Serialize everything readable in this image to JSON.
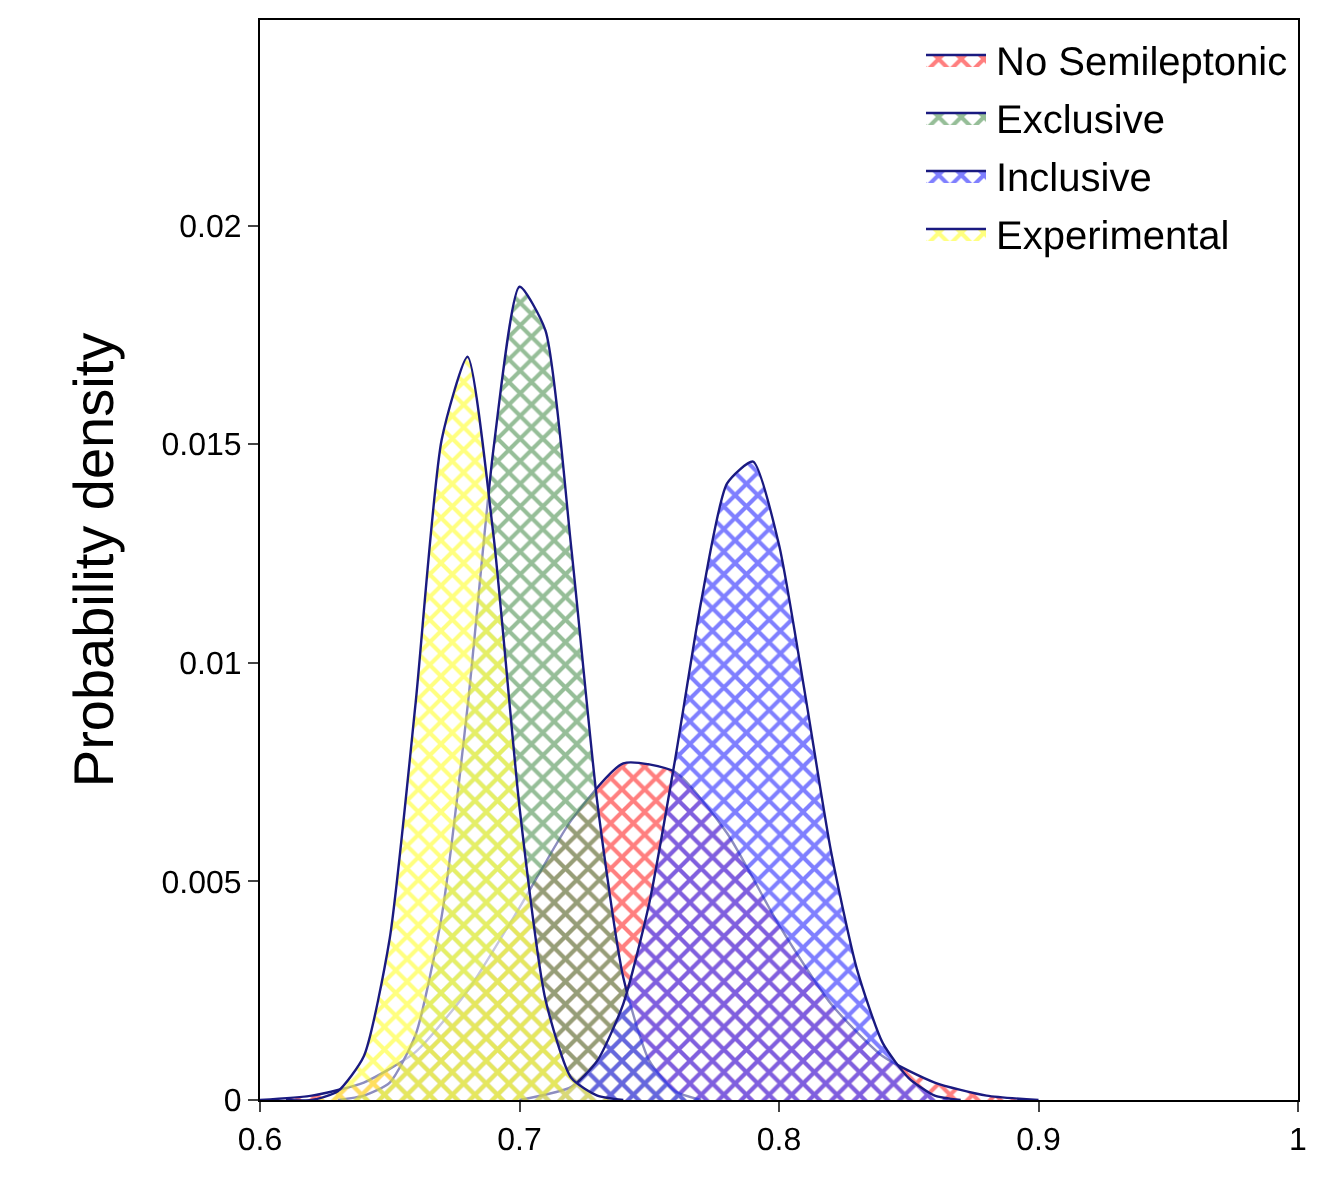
{
  "chart_data": {
    "type": "area",
    "ylabel": "Probability density",
    "xlim": [
      0.6,
      1.0
    ],
    "ylim": [
      0,
      0.0247
    ],
    "xticks": [
      0.6,
      0.7,
      0.8,
      0.9,
      1
    ],
    "yticks": [
      0,
      0.005,
      0.01,
      0.015,
      0.02
    ],
    "legend": "top right",
    "series": [
      {
        "name": "No Semileptonic",
        "color": "#ff0000",
        "x": [
          0.6,
          0.62,
          0.64,
          0.66,
          0.68,
          0.7,
          0.72,
          0.74,
          0.76,
          0.78,
          0.8,
          0.82,
          0.84,
          0.86,
          0.88,
          0.9
        ],
        "values": [
          0.0,
          0.0001,
          0.0004,
          0.0011,
          0.0025,
          0.0044,
          0.0064,
          0.0077,
          0.0075,
          0.0061,
          0.004,
          0.0022,
          0.001,
          0.0004,
          0.0001,
          0.0
        ]
      },
      {
        "name": "Exclusive",
        "color": "#2e7d32",
        "x": [
          0.63,
          0.64,
          0.65,
          0.66,
          0.67,
          0.68,
          0.69,
          0.7,
          0.71,
          0.72,
          0.73,
          0.74,
          0.75,
          0.76,
          0.77
        ],
        "values": [
          0.0,
          0.0001,
          0.0004,
          0.0015,
          0.0042,
          0.009,
          0.0149,
          0.0186,
          0.0176,
          0.0126,
          0.0068,
          0.0028,
          0.0009,
          0.0002,
          0.0
        ]
      },
      {
        "name": "Inclusive",
        "color": "#0000ff",
        "x": [
          0.7,
          0.72,
          0.73,
          0.74,
          0.75,
          0.76,
          0.77,
          0.78,
          0.79,
          0.8,
          0.81,
          0.82,
          0.83,
          0.84,
          0.85,
          0.86,
          0.87
        ],
        "values": [
          0.0,
          0.0003,
          0.0009,
          0.0022,
          0.0045,
          0.0078,
          0.0114,
          0.0141,
          0.0146,
          0.0127,
          0.0093,
          0.0057,
          0.003,
          0.0013,
          0.0005,
          0.0001,
          0.0
        ]
      },
      {
        "name": "Experimental",
        "color": "#ffff00",
        "x": [
          0.61,
          0.62,
          0.63,
          0.64,
          0.65,
          0.66,
          0.67,
          0.68,
          0.69,
          0.7,
          0.71,
          0.72,
          0.73,
          0.74
        ],
        "values": [
          0.0,
          0.0,
          0.0002,
          0.001,
          0.0037,
          0.0091,
          0.0151,
          0.017,
          0.0129,
          0.0067,
          0.0023,
          0.0005,
          0.0001,
          0.0
        ]
      }
    ]
  }
}
